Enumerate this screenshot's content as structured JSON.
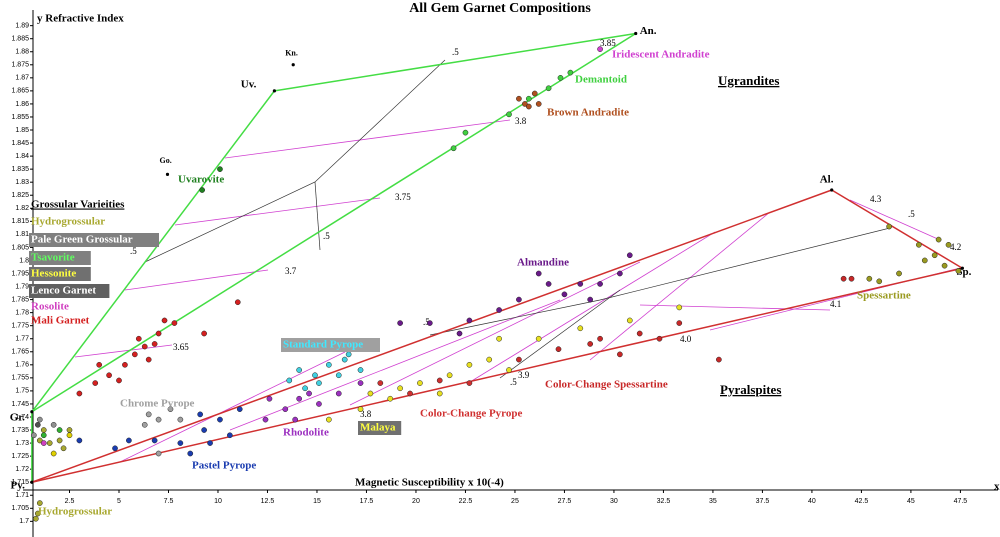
{
  "chart_data": {
    "type": "scatter",
    "title": "All Gem Garnet Compositions",
    "y_label": "y Refractive Index",
    "x_label": "Magnetic Susceptibility x 10(-4)",
    "x_axis_letter": "x",
    "legend_title": "Grossular Varieities",
    "region_labels": [
      "Ugrandites",
      "Pyralspites"
    ],
    "xlim": [
      0,
      49.5
    ],
    "ylim": [
      1.694,
      1.896
    ],
    "xticks": [
      2.5,
      5,
      7.5,
      10,
      12.5,
      15,
      17.5,
      20,
      22.5,
      25,
      27.5,
      30,
      32.5,
      35,
      37.5,
      40,
      42.5,
      45,
      47.5
    ],
    "yticks": [
      1.7,
      1.705,
      1.71,
      1.715,
      1.72,
      1.725,
      1.73,
      1.735,
      1.74,
      1.745,
      1.75,
      1.755,
      1.76,
      1.765,
      1.77,
      1.775,
      1.78,
      1.785,
      1.79,
      1.795,
      1.8,
      1.805,
      1.81,
      1.815,
      1.82,
      1.825,
      1.83,
      1.835,
      1.84,
      1.845,
      1.85,
      1.855,
      1.86,
      1.865,
      1.87,
      1.875,
      1.88,
      1.885,
      1.89
    ],
    "end_members": {
      "labels": [
        "Py.",
        "Gr.",
        "Uv.",
        "An.",
        "Al.",
        "Sp.",
        "Kn.",
        "Go."
      ],
      "x": [
        0.6,
        0.6,
        12.85,
        31.1,
        41.0,
        47.6,
        13.8,
        7.45
      ],
      "y": [
        1.715,
        1.742,
        1.865,
        1.887,
        1.827,
        1.797,
        1.875,
        1.833
      ]
    },
    "contour_labels": [
      "3.65",
      "3.7",
      "3.75",
      "3.8",
      "3.85",
      ".5",
      ".5",
      ".5",
      "3.8",
      "3.9",
      ".5",
      "4.0",
      "4.1",
      "4.2",
      "4.3",
      ".5",
      ".5"
    ],
    "series": [
      {
        "name": "Hydrogrossular",
        "color": "#a8a830",
        "x": [
          1.0,
          1.5,
          2.0,
          2.5,
          1.2,
          2.2,
          0.9,
          0.8,
          1.0
        ],
        "y": [
          1.731,
          1.73,
          1.731,
          1.735,
          1.735,
          1.728,
          1.703,
          1.701,
          1.707
        ]
      },
      {
        "name": "Pale Green Grossular",
        "color": "#909090",
        "x": [
          1.0,
          1.7,
          0.7
        ],
        "y": [
          1.739,
          1.737,
          1.733
        ]
      },
      {
        "name": "Tsavorite",
        "color": "#30b030",
        "x": [
          1.2,
          2.0
        ],
        "y": [
          1.733,
          1.735
        ]
      },
      {
        "name": "Hessonite",
        "color": "#e0d000",
        "x": [
          2.5,
          1.7
        ],
        "y": [
          1.733,
          1.726
        ]
      },
      {
        "name": "Lenco Garnet",
        "color": "#505050",
        "x": [
          0.9
        ],
        "y": [
          1.737
        ]
      },
      {
        "name": "Rosolite",
        "color": "#d040c0",
        "x": [
          1.2
        ],
        "y": [
          1.73
        ]
      },
      {
        "name": "Mali Garnet",
        "color": "#d42020",
        "x": [
          3.0,
          3.8,
          4.5,
          5.3,
          5.8,
          6.3,
          6.8,
          7.0,
          7.3,
          7.8,
          6.5,
          5.0,
          9.3,
          11.0,
          4.0,
          6.0
        ],
        "y": [
          1.749,
          1.753,
          1.756,
          1.76,
          1.764,
          1.767,
          1.768,
          1.772,
          1.777,
          1.776,
          1.762,
          1.754,
          1.772,
          1.784,
          1.76,
          1.77
        ]
      },
      {
        "name": "Chrome Pyrope",
        "color": "#a0a0a0",
        "x": [
          6.5,
          7.0,
          7.6,
          6.3,
          8.1,
          7.0
        ],
        "y": [
          1.741,
          1.739,
          1.743,
          1.737,
          1.739,
          1.726
        ]
      },
      {
        "name": "Standard Pyrope",
        "color": "#40d0e0",
        "x": [
          13.6,
          14.1,
          14.9,
          15.6,
          16.4,
          16.6,
          17.2,
          15.1,
          14.4,
          16.1
        ],
        "y": [
          1.754,
          1.758,
          1.756,
          1.76,
          1.762,
          1.764,
          1.758,
          1.753,
          1.751,
          1.756
        ]
      },
      {
        "name": "Pastel Pyrope",
        "color": "#1a3cb0",
        "x": [
          4.8,
          5.5,
          6.8,
          8.1,
          9.1,
          9.3,
          10.1,
          11.1,
          8.6,
          9.6,
          3.0,
          10.6
        ],
        "y": [
          1.728,
          1.731,
          1.731,
          1.73,
          1.741,
          1.735,
          1.739,
          1.743,
          1.726,
          1.73,
          1.731,
          1.733
        ]
      },
      {
        "name": "Rhodolite",
        "color": "#9c30c0",
        "x": [
          12.6,
          13.4,
          14.1,
          15.1,
          16.1,
          12.4,
          13.9,
          17.2,
          14.6
        ],
        "y": [
          1.747,
          1.743,
          1.747,
          1.745,
          1.749,
          1.739,
          1.739,
          1.753,
          1.749
        ]
      },
      {
        "name": "Malaya",
        "color": "#e8e020",
        "x": [
          15.6,
          17.2,
          18.7,
          20.2,
          21.7,
          22.7,
          23.7,
          19.2,
          21.2,
          24.2,
          26.2,
          28.3,
          30.8,
          33.3,
          17.7,
          24.7
        ],
        "y": [
          1.739,
          1.743,
          1.747,
          1.753,
          1.756,
          1.76,
          1.762,
          1.751,
          1.749,
          1.77,
          1.77,
          1.774,
          1.777,
          1.782,
          1.749,
          1.758
        ]
      },
      {
        "name": "Color-Change Pyrope",
        "color": "#d03030",
        "x": [
          19.7,
          21.2,
          22.7,
          18.2
        ],
        "y": [
          1.749,
          1.754,
          1.753,
          1.753
        ]
      },
      {
        "name": "Color-Change Spessartine",
        "color": "#c82828",
        "x": [
          25.2,
          27.2,
          29.3,
          31.3,
          33.3,
          30.3,
          28.8,
          35.3,
          32.3,
          41.6,
          42.0
        ],
        "y": [
          1.762,
          1.766,
          1.77,
          1.772,
          1.776,
          1.764,
          1.768,
          1.762,
          1.77,
          1.793,
          1.793
        ]
      },
      {
        "name": "Almandine",
        "color": "#6a1a8a",
        "x": [
          26.2,
          26.7,
          27.5,
          28.3,
          28.8,
          25.2,
          24.2,
          22.7,
          20.7,
          19.2,
          29.3,
          30.3,
          30.8,
          22.2,
          17.9
        ],
        "y": [
          1.795,
          1.791,
          1.787,
          1.791,
          1.785,
          1.785,
          1.781,
          1.777,
          1.776,
          1.776,
          1.791,
          1.795,
          1.802,
          1.772,
          1.768
        ]
      },
      {
        "name": "Spessartine",
        "color": "#9a9a20",
        "x": [
          42.9,
          43.4,
          44.4,
          45.4,
          46.2,
          46.7,
          46.9,
          46.4,
          45.7,
          47.4,
          43.9
        ],
        "y": [
          1.793,
          1.792,
          1.795,
          1.806,
          1.802,
          1.798,
          1.806,
          1.808,
          1.8,
          1.796,
          1.813
        ]
      },
      {
        "name": "Uvarovite",
        "color": "#208020",
        "x": [
          10.1,
          9.2
        ],
        "y": [
          1.835,
          1.827
        ]
      },
      {
        "name": "Demantoid",
        "color": "#40d040",
        "x": [
          21.9,
          22.5,
          25.7,
          26.7,
          27.3,
          27.8,
          24.7
        ],
        "y": [
          1.843,
          1.849,
          1.862,
          1.866,
          1.87,
          1.872,
          1.856
        ]
      },
      {
        "name": "Brown Andradite",
        "color": "#b05020",
        "x": [
          25.2,
          25.5,
          25.7,
          26.2,
          26.0
        ],
        "y": [
          1.862,
          1.86,
          1.859,
          1.86,
          1.864
        ]
      },
      {
        "name": "Iridescent Andradite",
        "color": "#d040d0",
        "x": [
          29.3
        ],
        "y": [
          1.881
        ]
      }
    ]
  }
}
